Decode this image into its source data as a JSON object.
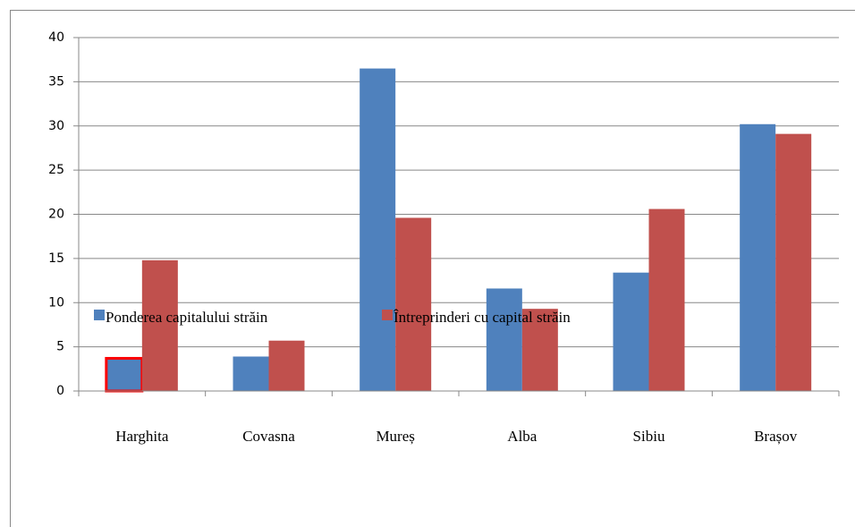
{
  "chart_data": {
    "type": "bar",
    "categories": [
      "Harghita",
      "Covasna",
      "Mureș",
      "Alba",
      "Sibiu",
      "Brașov"
    ],
    "series": [
      {
        "name": "Ponderea capitalului străin",
        "color": "#4f81bd",
        "values": [
          3.7,
          3.9,
          36.5,
          11.6,
          13.4,
          30.2
        ]
      },
      {
        "name": "Întreprinderi cu capital străin",
        "color": "#c0504d",
        "values": [
          14.8,
          5.7,
          19.6,
          9.3,
          20.6,
          29.1
        ]
      }
    ],
    "ylim": [
      0,
      40
    ],
    "yticks": [
      0,
      5,
      10,
      15,
      20,
      25,
      30,
      35,
      40
    ],
    "grid": true,
    "legend": "bottom"
  }
}
